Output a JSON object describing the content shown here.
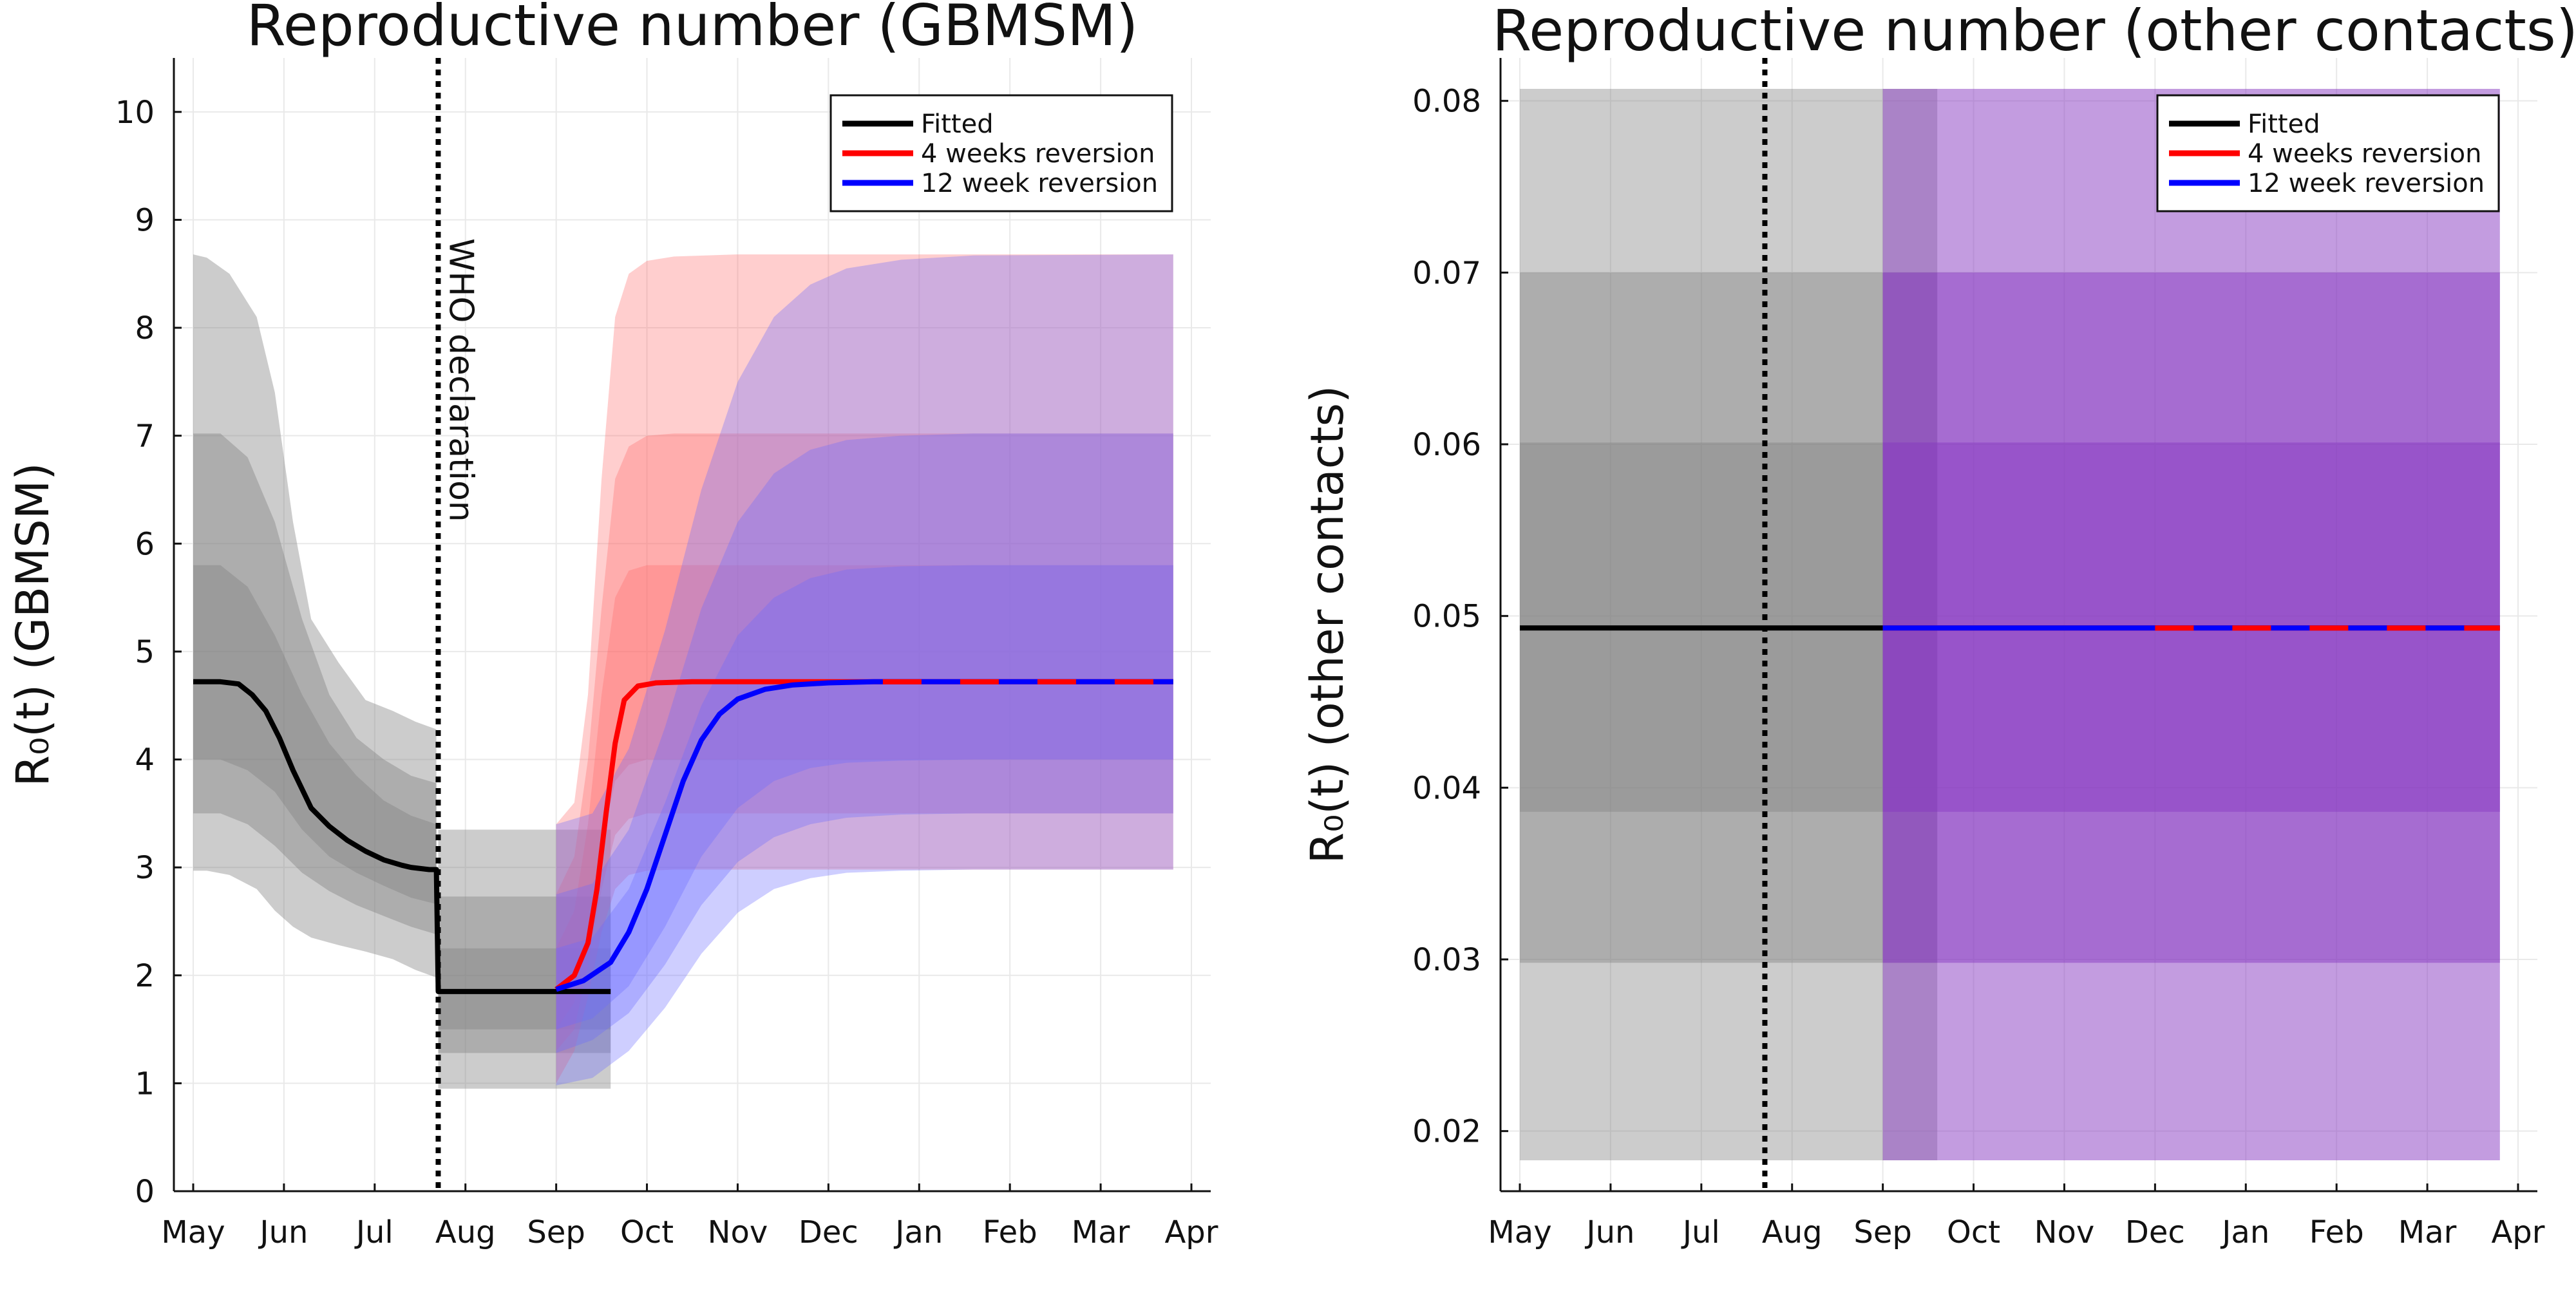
{
  "chart_data": [
    {
      "type": "line",
      "title": "Reproductive number (GBMSM)",
      "xlabel": "",
      "ylabel": "R₀(t) (GBMSM)",
      "x_ticks": [
        "May",
        "Jun",
        "Jul",
        "Aug",
        "Sep",
        "Oct",
        "Nov",
        "Dec",
        "Jan",
        "Feb",
        "Mar",
        "Apr"
      ],
      "xlim": [
        0,
        11
      ],
      "ylim": [
        0,
        10.5
      ],
      "y_ticks": [
        0,
        1,
        2,
        3,
        4,
        5,
        6,
        7,
        8,
        9,
        10
      ],
      "grid": true,
      "legend": "top-right",
      "legend_entries": [
        "Fitted",
        "4 weeks reversion",
        "12 week reversion"
      ],
      "colors": {
        "fitted": "#000000",
        "four_weeks": "#ff0000",
        "twelve_week": "#0000ff",
        "fitted_band": "#808080",
        "four_weeks_band": "#ff6a6a",
        "twelve_week_band": "#6a6aff",
        "overlap_band": "#8a3ec2"
      },
      "annotations": [
        {
          "text": "WHO declaration",
          "x": 2.7,
          "style": "vertical-dotted-line"
        }
      ],
      "series": [
        {
          "name": "Fitted",
          "x": [
            0,
            0.3,
            0.5,
            0.65,
            0.8,
            0.95,
            1.1,
            1.3,
            1.5,
            1.7,
            1.9,
            2.1,
            2.3,
            2.4,
            2.6,
            2.68,
            2.7,
            3.2,
            4.0,
            4.6
          ],
          "y": [
            4.72,
            4.72,
            4.7,
            4.6,
            4.45,
            4.2,
            3.9,
            3.55,
            3.38,
            3.25,
            3.15,
            3.07,
            3.02,
            3.0,
            2.98,
            2.98,
            1.85,
            1.85,
            1.85,
            1.85
          ],
          "bands": [
            {
              "level": "outer",
              "x": [
                0,
                0.15,
                0.4,
                0.7,
                0.9,
                1.1,
                1.3,
                1.6,
                1.9,
                2.2,
                2.45,
                2.68
              ],
              "lower": [
                2.97,
                2.97,
                2.93,
                2.8,
                2.6,
                2.45,
                2.35,
                2.28,
                2.22,
                2.15,
                2.05,
                1.98
              ],
              "upper": [
                8.68,
                8.65,
                8.5,
                8.1,
                7.4,
                6.2,
                5.3,
                4.9,
                4.55,
                4.45,
                4.35,
                4.28
              ]
            },
            {
              "level": "middle",
              "x": [
                0,
                0.3,
                0.6,
                0.9,
                1.2,
                1.5,
                1.8,
                2.1,
                2.4,
                2.68
              ],
              "lower": [
                3.5,
                3.5,
                3.4,
                3.2,
                2.95,
                2.78,
                2.65,
                2.55,
                2.45,
                2.38
              ],
              "upper": [
                7.02,
                7.02,
                6.8,
                6.2,
                5.3,
                4.6,
                4.2,
                4.0,
                3.85,
                3.78
              ]
            },
            {
              "level": "inner",
              "x": [
                0,
                0.3,
                0.6,
                0.9,
                1.2,
                1.5,
                1.8,
                2.1,
                2.4,
                2.68
              ],
              "lower": [
                4.0,
                4.0,
                3.9,
                3.7,
                3.35,
                3.1,
                2.95,
                2.83,
                2.72,
                2.66
              ],
              "upper": [
                5.8,
                5.8,
                5.6,
                5.15,
                4.6,
                4.15,
                3.85,
                3.62,
                3.48,
                3.4
              ]
            },
            {
              "level": "outer",
              "x": [
                2.7,
                4.6
              ],
              "lower": [
                0.95,
                0.95
              ],
              "upper": [
                3.35,
                3.35
              ]
            },
            {
              "level": "middle",
              "x": [
                2.7,
                4.6
              ],
              "lower": [
                1.28,
                1.28
              ],
              "upper": [
                2.73,
                2.73
              ]
            },
            {
              "level": "inner",
              "x": [
                2.7,
                4.6
              ],
              "lower": [
                1.5,
                1.5
              ],
              "upper": [
                2.25,
                2.25
              ]
            }
          ]
        },
        {
          "name": "4 weeks reversion",
          "x": [
            4.0,
            4.2,
            4.35,
            4.45,
            4.55,
            4.65,
            4.75,
            4.9,
            5.1,
            5.5,
            6.5,
            8.0,
            10.8
          ],
          "y": [
            1.87,
            2.0,
            2.3,
            2.8,
            3.5,
            4.15,
            4.55,
            4.68,
            4.71,
            4.72,
            4.72,
            4.72,
            4.72
          ],
          "bands": [
            {
              "level": "outer",
              "x": [
                4.0,
                4.2,
                4.35,
                4.5,
                4.65,
                4.8,
                5.0,
                5.3,
                6.0,
                10.8
              ],
              "lower": [
                1.0,
                1.3,
                1.8,
                2.4,
                2.8,
                2.93,
                2.97,
                2.98,
                2.98,
                2.98
              ],
              "upper": [
                3.4,
                3.6,
                4.6,
                6.6,
                8.1,
                8.5,
                8.62,
                8.66,
                8.68,
                8.68
              ]
            },
            {
              "level": "middle",
              "x": [
                4.0,
                4.2,
                4.35,
                4.5,
                4.65,
                4.8,
                5.0,
                5.3,
                6.0,
                10.8
              ],
              "lower": [
                1.3,
                1.5,
                2.1,
                2.8,
                3.3,
                3.45,
                3.5,
                3.5,
                3.5,
                3.5
              ],
              "upper": [
                2.75,
                3.1,
                4.0,
                5.4,
                6.6,
                6.9,
                7.0,
                7.02,
                7.02,
                7.02
              ]
            },
            {
              "level": "inner",
              "x": [
                4.0,
                4.2,
                4.35,
                4.5,
                4.65,
                4.8,
                5.0,
                5.3,
                6.0,
                10.8
              ],
              "lower": [
                1.5,
                1.75,
                2.4,
                3.2,
                3.8,
                3.95,
                4.0,
                4.0,
                4.0,
                4.0
              ],
              "upper": [
                2.25,
                2.6,
                3.4,
                4.6,
                5.5,
                5.75,
                5.8,
                5.8,
                5.8,
                5.8
              ]
            }
          ]
        },
        {
          "name": "12 week reversion",
          "x": [
            4.0,
            4.3,
            4.6,
            4.8,
            5.0,
            5.2,
            5.4,
            5.6,
            5.8,
            6.0,
            6.3,
            6.6,
            7.0,
            7.5,
            8.0,
            9.0,
            10.8
          ],
          "y": [
            1.87,
            1.95,
            2.12,
            2.4,
            2.8,
            3.3,
            3.8,
            4.18,
            4.42,
            4.56,
            4.65,
            4.69,
            4.71,
            4.72,
            4.72,
            4.72,
            4.72
          ],
          "bands": [
            {
              "level": "outer",
              "x": [
                4.0,
                4.4,
                4.8,
                5.2,
                5.6,
                6.0,
                6.4,
                6.8,
                7.2,
                7.8,
                8.6,
                10.8
              ],
              "lower": [
                0.98,
                1.05,
                1.3,
                1.7,
                2.2,
                2.58,
                2.8,
                2.9,
                2.95,
                2.97,
                2.98,
                2.98
              ],
              "upper": [
                3.4,
                3.5,
                4.1,
                5.2,
                6.5,
                7.5,
                8.1,
                8.4,
                8.55,
                8.63,
                8.67,
                8.68
              ]
            },
            {
              "level": "middle",
              "x": [
                4.0,
                4.4,
                4.8,
                5.2,
                5.6,
                6.0,
                6.4,
                6.8,
                7.2,
                7.8,
                8.6,
                10.8
              ],
              "lower": [
                1.28,
                1.4,
                1.65,
                2.1,
                2.65,
                3.05,
                3.28,
                3.4,
                3.46,
                3.49,
                3.5,
                3.5
              ],
              "upper": [
                2.75,
                2.85,
                3.35,
                4.3,
                5.4,
                6.2,
                6.65,
                6.87,
                6.96,
                7.0,
                7.02,
                7.02
              ]
            },
            {
              "level": "inner",
              "x": [
                4.0,
                4.4,
                4.8,
                5.2,
                5.6,
                6.0,
                6.4,
                6.8,
                7.2,
                7.8,
                8.6,
                10.8
              ],
              "lower": [
                1.5,
                1.6,
                1.9,
                2.45,
                3.1,
                3.55,
                3.8,
                3.92,
                3.97,
                3.99,
                4.0,
                4.0
              ],
              "upper": [
                2.25,
                2.35,
                2.8,
                3.6,
                4.5,
                5.15,
                5.5,
                5.68,
                5.76,
                5.79,
                5.8,
                5.8
              ]
            }
          ]
        }
      ]
    },
    {
      "type": "line",
      "title": "Reproductive number (other contacts)",
      "xlabel": "",
      "ylabel": "R₀(t) (other contacts)",
      "x_ticks": [
        "May",
        "Jun",
        "Jul",
        "Aug",
        "Sep",
        "Oct",
        "Nov",
        "Dec",
        "Jan",
        "Feb",
        "Mar",
        "Apr"
      ],
      "xlim": [
        0,
        11
      ],
      "ylim": [
        0.0165,
        0.0825
      ],
      "y_ticks": [
        0.02,
        0.03,
        0.04,
        0.05,
        0.06,
        0.07,
        0.08
      ],
      "grid": true,
      "legend": "top-right",
      "legend_entries": [
        "Fitted",
        "4 weeks reversion",
        "12 week reversion"
      ],
      "colors": {
        "fitted": "#000000",
        "four_weeks": "#ff0000",
        "twelve_week": "#0000ff",
        "fitted_band": "#808080",
        "overlap_band": "#8a3ec2"
      },
      "annotations": [
        {
          "text": "",
          "x": 2.7,
          "style": "vertical-dotted-line"
        }
      ],
      "series": [
        {
          "name": "Fitted",
          "x": [
            0,
            4.0
          ],
          "y": [
            0.0493,
            0.0493
          ],
          "bands": [
            {
              "level": "outer",
              "x": [
                0,
                4.6
              ],
              "lower": [
                0.0183,
                0.0183
              ],
              "upper": [
                0.0807,
                0.0807
              ]
            },
            {
              "level": "middle",
              "x": [
                0,
                4.6
              ],
              "lower": [
                0.0298,
                0.0298
              ],
              "upper": [
                0.07,
                0.07
              ]
            },
            {
              "level": "inner",
              "x": [
                0,
                4.6
              ],
              "lower": [
                0.0386,
                0.0386
              ],
              "upper": [
                0.0601,
                0.0601
              ]
            }
          ]
        },
        {
          "name": "4 weeks reversion",
          "x": [
            4.0,
            10.8
          ],
          "y": [
            0.0493,
            0.0493
          ],
          "bands": [
            {
              "level": "outer",
              "x": [
                4.0,
                10.8
              ],
              "lower": [
                0.0183,
                0.0183
              ],
              "upper": [
                0.0807,
                0.0807
              ]
            },
            {
              "level": "middle",
              "x": [
                4.0,
                10.8
              ],
              "lower": [
                0.0298,
                0.0298
              ],
              "upper": [
                0.07,
                0.07
              ]
            },
            {
              "level": "inner",
              "x": [
                4.0,
                10.8
              ],
              "lower": [
                0.0386,
                0.0386
              ],
              "upper": [
                0.0601,
                0.0601
              ]
            }
          ]
        },
        {
          "name": "12 week reversion",
          "x": [
            4.0,
            10.8
          ],
          "y": [
            0.0493,
            0.0493
          ],
          "bands": [
            {
              "level": "outer",
              "x": [
                4.0,
                10.8
              ],
              "lower": [
                0.0183,
                0.0183
              ],
              "upper": [
                0.0807,
                0.0807
              ]
            },
            {
              "level": "middle",
              "x": [
                4.0,
                10.8
              ],
              "lower": [
                0.0298,
                0.0298
              ],
              "upper": [
                0.07,
                0.07
              ]
            },
            {
              "level": "inner",
              "x": [
                4.0,
                10.8
              ],
              "lower": [
                0.0386,
                0.0386
              ],
              "upper": [
                0.0601,
                0.0601
              ]
            }
          ]
        }
      ]
    }
  ]
}
